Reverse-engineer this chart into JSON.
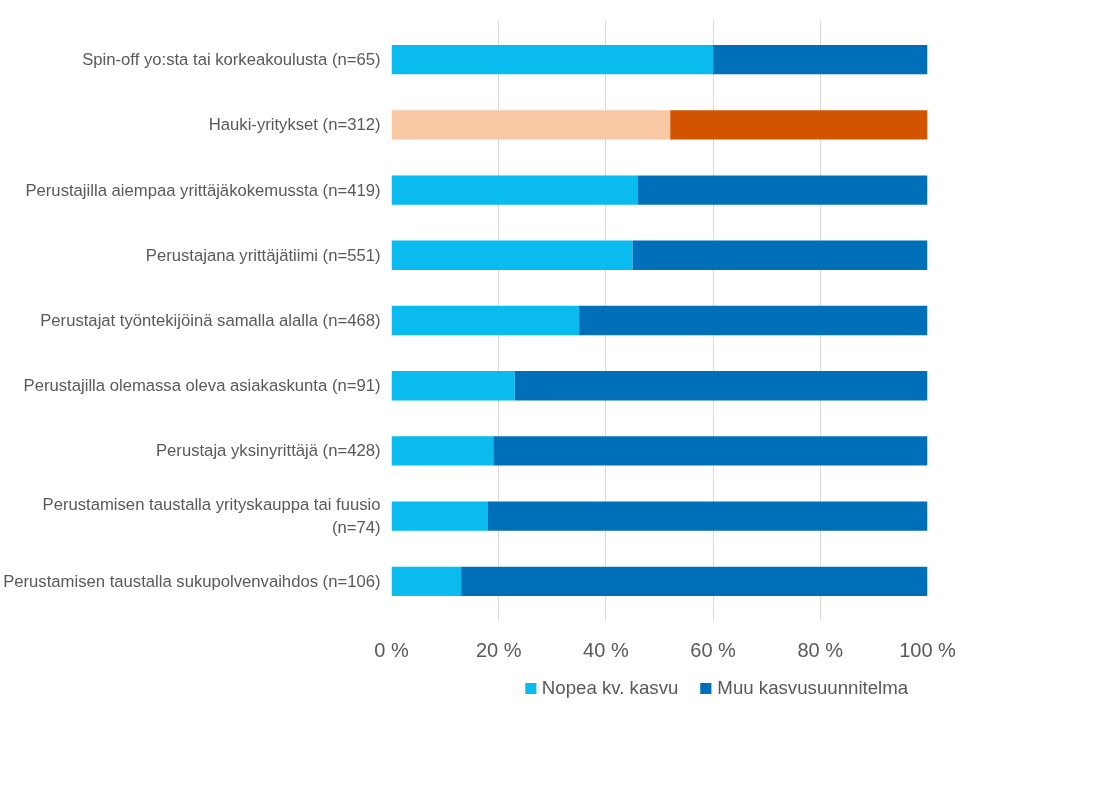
{
  "chart_data": {
    "type": "bar",
    "orientation": "horizontal",
    "stacked": true,
    "categories": [
      "Spin-off yo:sta tai korkeakoulusta (n=65)",
      "Hauki-yritykset (n=312)",
      "Perustajilla aiempaa yrittäjäkokemussta (n=419)",
      "Perustajana yrittäjätiimi (n=551)",
      "Perustajat työntekijöinä samalla alalla (n=468)",
      "Perustajilla olemassa oleva asiakaskunta (n=91)",
      "Perustaja yksinyrittäjä (n=428)",
      "Perustamisen taustalla yrityskauppa tai fuusio (n=74)",
      "Perustamisen taustalla sukupolvenvaihdos (n=106)"
    ],
    "series": [
      {
        "name": "Nopea kv. kasvu",
        "color": "#0abbef",
        "colors": [
          null,
          "#f8c8a4",
          null,
          null,
          null,
          null,
          null,
          null,
          null
        ],
        "values": [
          60,
          52,
          46,
          45,
          35,
          23,
          19,
          18,
          13
        ]
      },
      {
        "name": "Muu kasvusuunnitelma",
        "color": "#006fba",
        "colors": [
          null,
          "#d35400",
          null,
          null,
          null,
          null,
          null,
          null,
          null
        ],
        "values": [
          40,
          48,
          54,
          55,
          65,
          77,
          81,
          82,
          87
        ]
      }
    ],
    "xlim": [
      0,
      100
    ],
    "xticks": [
      {
        "value": 0,
        "label": "0 %"
      },
      {
        "value": 20,
        "label": "20 %"
      },
      {
        "value": 40,
        "label": "40 %"
      },
      {
        "value": 60,
        "label": "60 %"
      },
      {
        "value": 80,
        "label": "80 %"
      },
      {
        "value": 100,
        "label": "100 %"
      }
    ],
    "grid": "x",
    "legend": "bottom"
  }
}
